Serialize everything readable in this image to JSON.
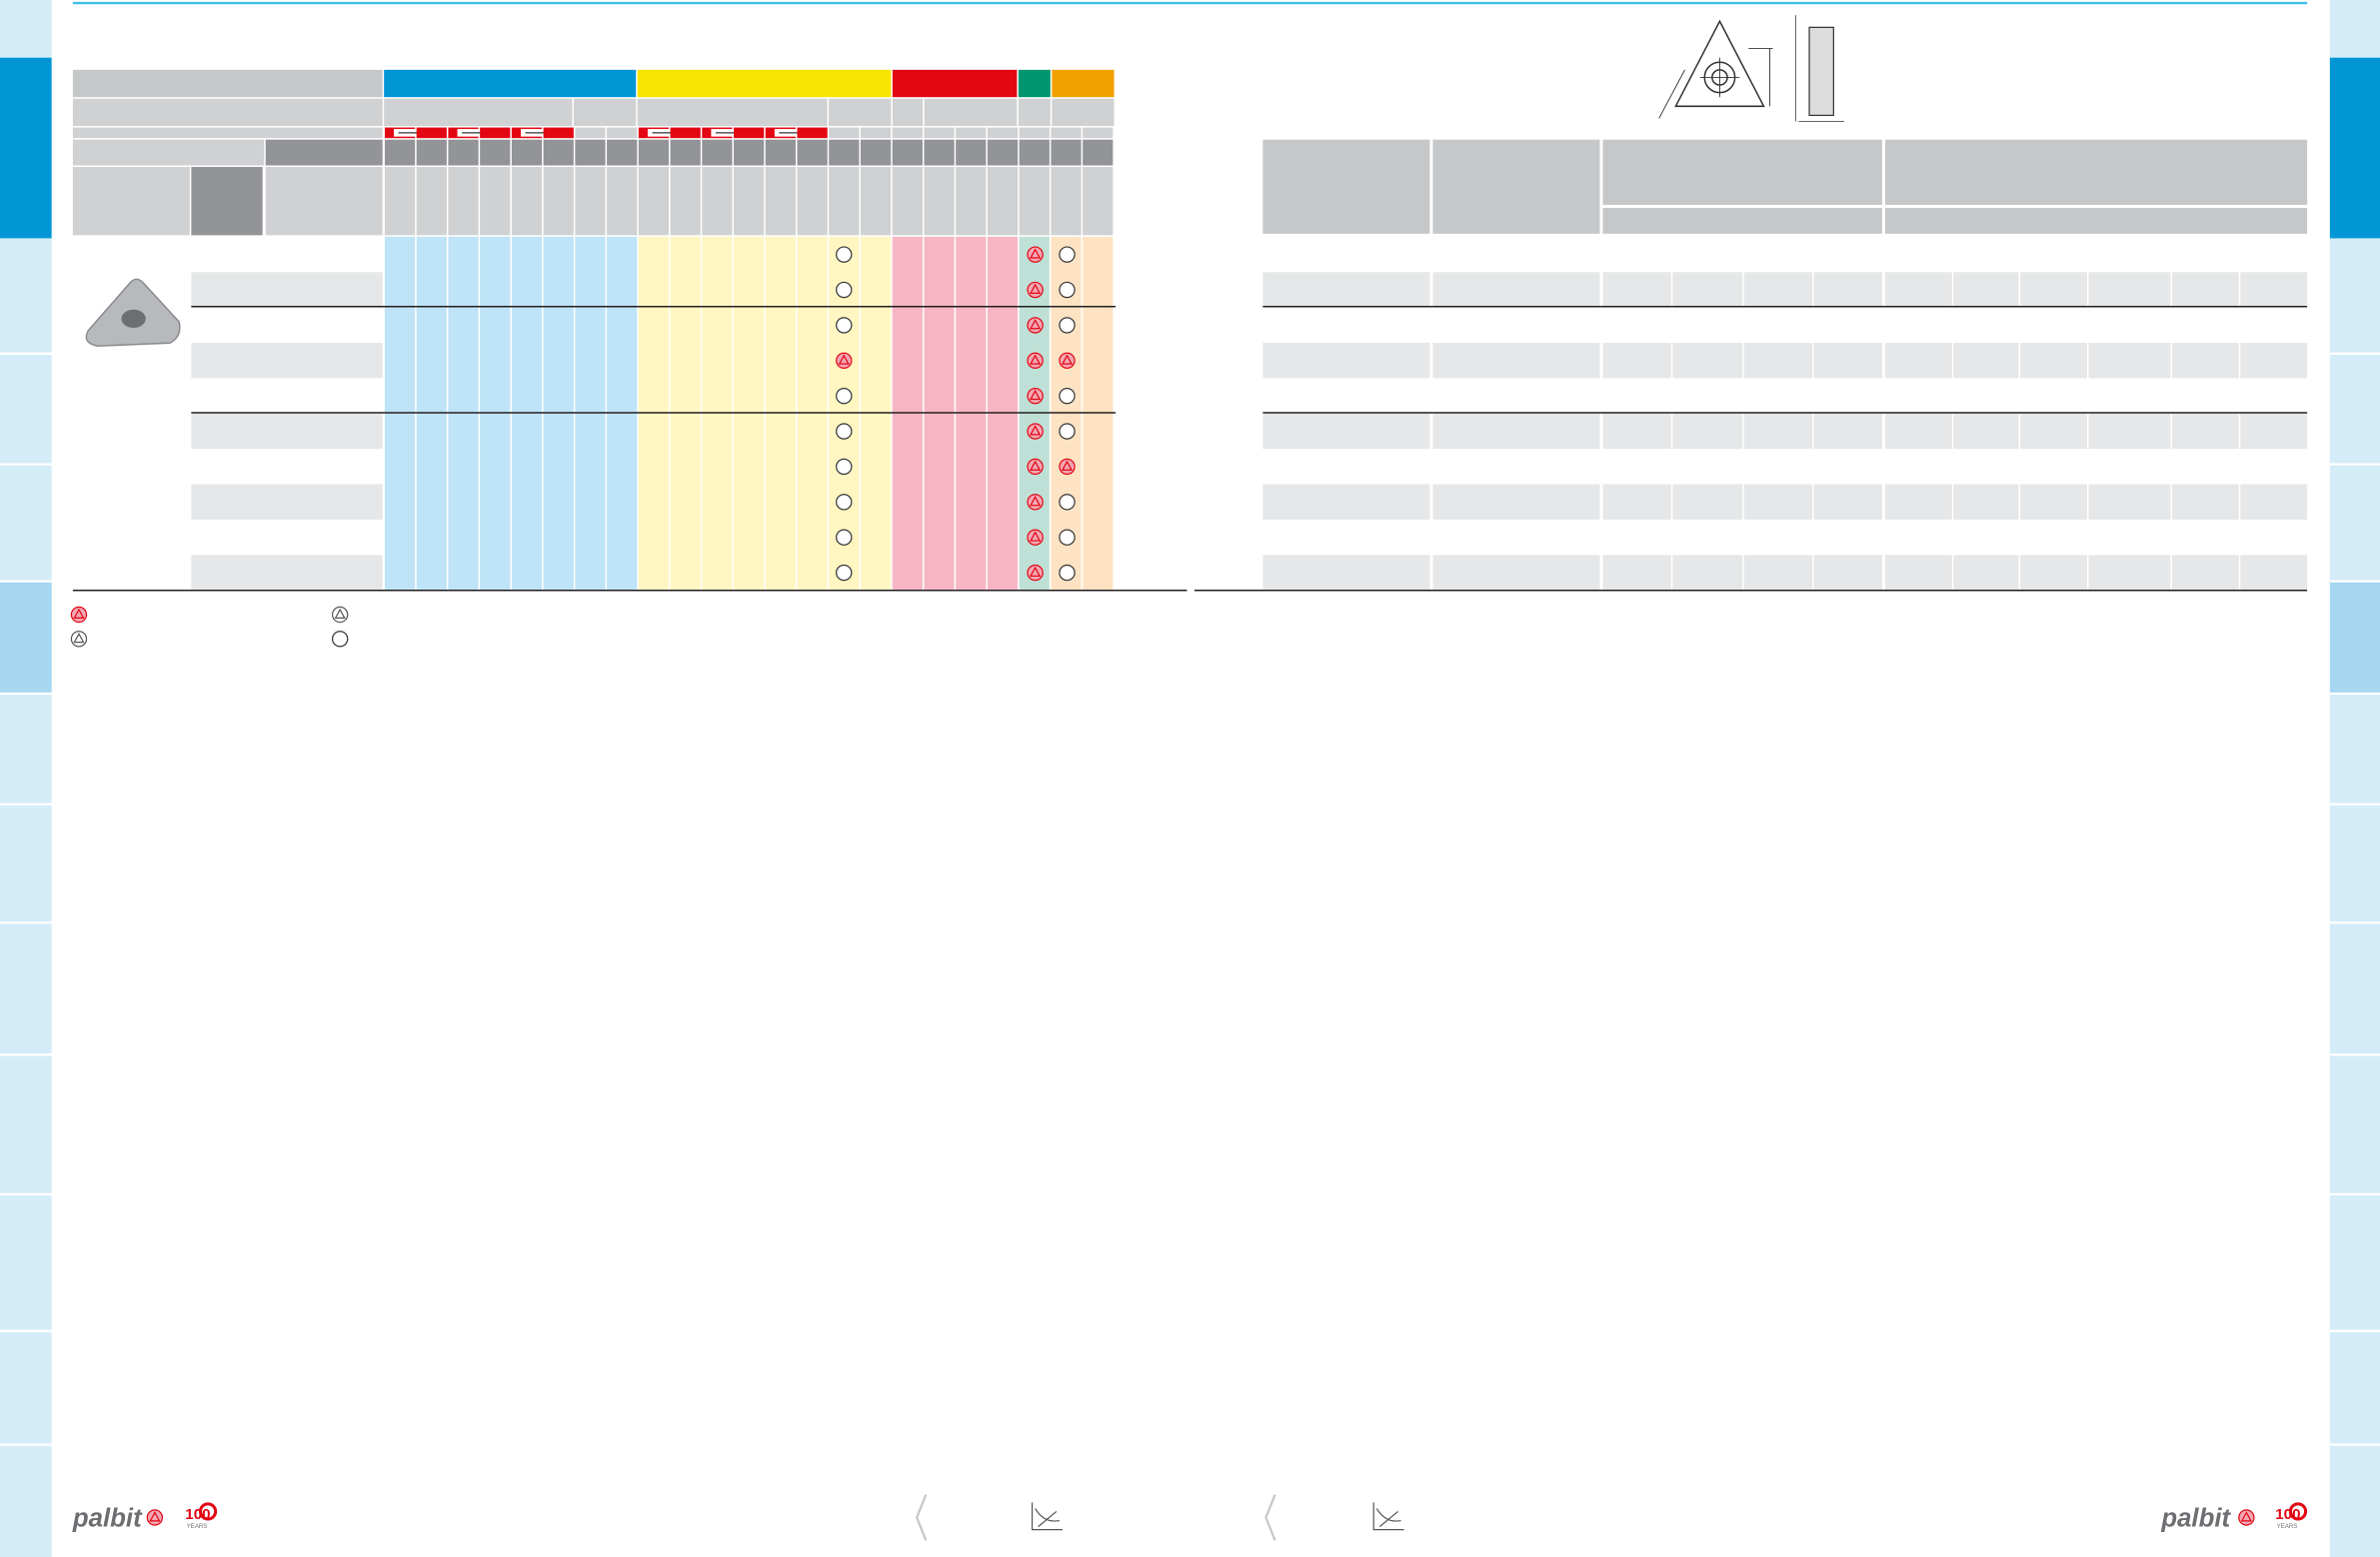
{
  "footer": {
    "left_brand": "palbit",
    "left_badge": "100",
    "left_badge_sub": "YEARS",
    "right_brand": "palbit",
    "right_badge": "100",
    "right_badge_sub": "YEARS"
  }
}
